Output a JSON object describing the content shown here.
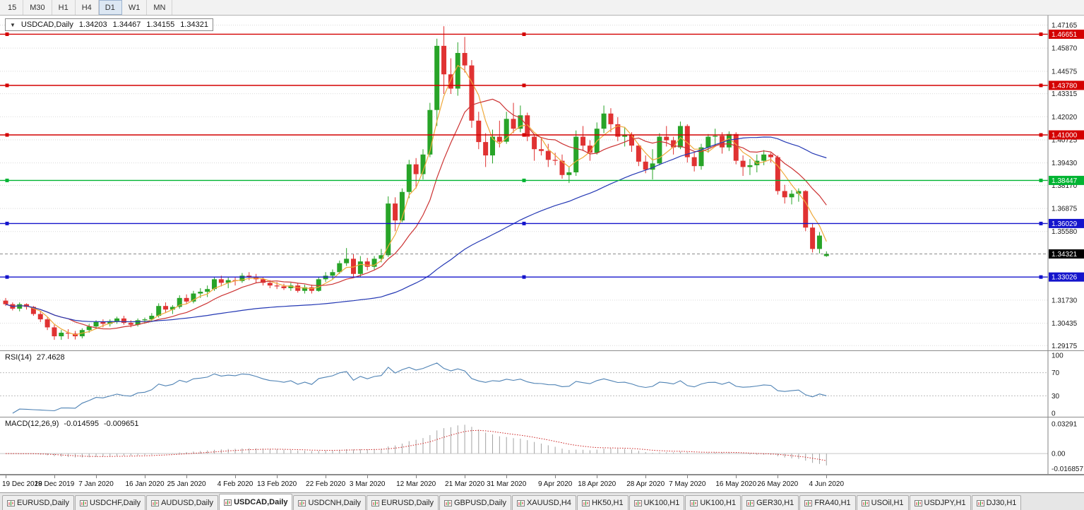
{
  "toolbar": {
    "timeframes": [
      {
        "label": "15",
        "active": false
      },
      {
        "label": "M30",
        "active": false
      },
      {
        "label": "H1",
        "active": false
      },
      {
        "label": "H4",
        "active": false
      },
      {
        "label": "D1",
        "active": true
      },
      {
        "label": "W1",
        "active": false
      },
      {
        "label": "MN",
        "active": false
      }
    ]
  },
  "title_box": {
    "dropdown_icon": "▼",
    "symbol": "USDCAD,Daily",
    "open": "1.34203",
    "high": "1.34467",
    "low": "1.34155",
    "close": "1.34321"
  },
  "price_axis": {
    "ticks": [
      "1.47165",
      "1.45870",
      "1.44575",
      "1.43315",
      "1.42020",
      "1.40725",
      "1.39430",
      "1.38170",
      "1.36875",
      "1.35580",
      "1.31730",
      "1.30435",
      "1.29175"
    ],
    "line_badges": [
      {
        "label": "1.46651",
        "color": "#D40000"
      },
      {
        "label": "1.43780",
        "color": "#D40000"
      },
      {
        "label": "1.41000",
        "color": "#D40000"
      },
      {
        "label": "1.38447",
        "color": "#00B432"
      },
      {
        "label": "1.36029",
        "color": "#1414CC"
      },
      {
        "label": "1.33026",
        "color": "#1414CC"
      }
    ],
    "current_badge": {
      "label": "1.34321",
      "color": "#000000"
    }
  },
  "indicators": {
    "rsi": {
      "name": "RSI(14)",
      "value": "27.4628",
      "axis": [
        "100",
        "70",
        "30",
        "0"
      ],
      "levels": [
        70,
        30
      ],
      "color": "#4E82B4"
    },
    "macd": {
      "name": "MACD(12,26,9)",
      "value_main": "-0.014595",
      "value_signal": "-0.009651",
      "axis": [
        "0.03291",
        "0.00",
        "-0.016857"
      ],
      "histogram_color": "#A3A3A3",
      "signal_color": "#CC2222"
    }
  },
  "x_axis_labels": [
    "19 Dec 2019",
    "28 Dec 2019",
    "7 Jan 2020",
    "16 Jan 2020",
    "25 Jan 2020",
    "4 Feb 2020",
    "13 Feb 2020",
    "22 Feb 2020",
    "3 Mar 2020",
    "12 Mar 2020",
    "21 Mar 2020",
    "31 Mar 2020",
    "9 Apr 2020",
    "18 Apr 2020",
    "28 Apr 2020",
    "7 May 2020",
    "16 May 2020",
    "26 May 2020",
    "4 Jun 2020"
  ],
  "tabs": [
    {
      "label": "EURUSD,Daily",
      "active": false
    },
    {
      "label": "USDCHF,Daily",
      "active": false
    },
    {
      "label": "AUDUSD,Daily",
      "active": false
    },
    {
      "label": "USDCAD,Daily",
      "active": true
    },
    {
      "label": "USDCNH,Daily",
      "active": false
    },
    {
      "label": "EURUSD,Daily",
      "active": false
    },
    {
      "label": "GBPUSD,Daily",
      "active": false
    },
    {
      "label": "XAUUSD,H4",
      "active": false
    },
    {
      "label": "HK50,H1",
      "active": false
    },
    {
      "label": "UK100,H1",
      "active": false
    },
    {
      "label": "UK100,H1",
      "active": false
    },
    {
      "label": "GER30,H1",
      "active": false
    },
    {
      "label": "FRA40,H1",
      "active": false
    },
    {
      "label": "USOil,H1",
      "active": false
    },
    {
      "label": "USDJPY,H1",
      "active": false
    },
    {
      "label": "DJ30,H1",
      "active": false
    }
  ],
  "chart_data": {
    "type": "candlestick",
    "symbol": "USDCAD",
    "timeframe": "Daily",
    "last_ohlc": {
      "open": 1.34203,
      "high": 1.34467,
      "low": 1.34155,
      "close": 1.34321
    },
    "price_range": [
      1.2887,
      1.477
    ],
    "candle_colors": {
      "bull": "#28A428",
      "bear": "#E03232"
    },
    "hlines": [
      {
        "price": 1.46651,
        "color": "#D40000"
      },
      {
        "price": 1.4378,
        "color": "#D40000"
      },
      {
        "price": 1.41,
        "color": "#D40000"
      },
      {
        "price": 1.38447,
        "color": "#00B432"
      },
      {
        "price": 1.36029,
        "color": "#1414CC"
      },
      {
        "price": 1.33026,
        "color": "#1414CC"
      }
    ],
    "moving_averages": [
      {
        "period": 4,
        "method": "sma",
        "color": "#EFA93A"
      },
      {
        "period": 10,
        "method": "sma",
        "color": "#CC3333"
      },
      {
        "period": 50,
        "method": "sma",
        "color": "#2438B4"
      }
    ],
    "rsi_period": 14,
    "macd_params": [
      12,
      26,
      9
    ],
    "x_labels": [
      "19 Dec 2019",
      "28 Dec 2019",
      "7 Jan 2020",
      "16 Jan 2020",
      "25 Jan 2020",
      "4 Feb 2020",
      "13 Feb 2020",
      "22 Feb 2020",
      "3 Mar 2020",
      "12 Mar 2020",
      "21 Mar 2020",
      "31 Mar 2020",
      "9 Apr 2020",
      "18 Apr 2020",
      "28 Apr 2020",
      "7 May 2020",
      "16 May 2020",
      "26 May 2020",
      "4 Jun 2020"
    ],
    "candles": [
      [
        1.317,
        1.3185,
        1.314,
        1.315
      ],
      [
        1.315,
        1.316,
        1.3115,
        1.3125
      ],
      [
        1.3125,
        1.316,
        1.311,
        1.315
      ],
      [
        1.315,
        1.3155,
        1.312,
        1.3135
      ],
      [
        1.3135,
        1.314,
        1.3085,
        1.3095
      ],
      [
        1.3095,
        1.311,
        1.305,
        1.3065
      ],
      [
        1.3065,
        1.3075,
        1.3005,
        1.302
      ],
      [
        1.302,
        1.3035,
        1.295,
        1.297
      ],
      [
        1.297,
        1.3005,
        1.295,
        1.299
      ],
      [
        1.299,
        1.301,
        1.2955,
        1.2985
      ],
      [
        1.2985,
        1.3,
        1.2952,
        1.297
      ],
      [
        1.297,
        1.3015,
        1.2958,
        1.3005
      ],
      [
        1.3005,
        1.304,
        1.299,
        1.3025
      ],
      [
        1.3025,
        1.306,
        1.301,
        1.305
      ],
      [
        1.305,
        1.3065,
        1.302,
        1.304
      ],
      [
        1.304,
        1.3065,
        1.3025,
        1.3055
      ],
      [
        1.3055,
        1.308,
        1.304,
        1.307
      ],
      [
        1.307,
        1.3085,
        1.3035,
        1.3045
      ],
      [
        1.3045,
        1.306,
        1.302,
        1.3035
      ],
      [
        1.3035,
        1.307,
        1.3025,
        1.306
      ],
      [
        1.306,
        1.3075,
        1.304,
        1.3065
      ],
      [
        1.3065,
        1.31,
        1.305,
        1.3085
      ],
      [
        1.3085,
        1.3155,
        1.3075,
        1.314
      ],
      [
        1.314,
        1.316,
        1.31,
        1.312
      ],
      [
        1.312,
        1.3145,
        1.3095,
        1.3135
      ],
      [
        1.3135,
        1.32,
        1.3125,
        1.3185
      ],
      [
        1.3185,
        1.3205,
        1.315,
        1.3165
      ],
      [
        1.3165,
        1.3225,
        1.3155,
        1.321
      ],
      [
        1.321,
        1.324,
        1.3185,
        1.322
      ],
      [
        1.322,
        1.3255,
        1.319,
        1.3235
      ],
      [
        1.3235,
        1.3305,
        1.3225,
        1.329
      ],
      [
        1.329,
        1.331,
        1.325,
        1.327
      ],
      [
        1.327,
        1.33,
        1.324,
        1.3285
      ],
      [
        1.3285,
        1.33,
        1.3255,
        1.328
      ],
      [
        1.328,
        1.3325,
        1.327,
        1.331
      ],
      [
        1.331,
        1.333,
        1.3285,
        1.3305
      ],
      [
        1.3305,
        1.332,
        1.327,
        1.329
      ],
      [
        1.329,
        1.3305,
        1.3255,
        1.327
      ],
      [
        1.327,
        1.3285,
        1.324,
        1.3255
      ],
      [
        1.3255,
        1.3275,
        1.3235,
        1.325
      ],
      [
        1.325,
        1.3265,
        1.323,
        1.324
      ],
      [
        1.324,
        1.327,
        1.3225,
        1.3255
      ],
      [
        1.3255,
        1.327,
        1.3215,
        1.3225
      ],
      [
        1.3225,
        1.326,
        1.321,
        1.3245
      ],
      [
        1.3245,
        1.326,
        1.321,
        1.3225
      ],
      [
        1.3225,
        1.3305,
        1.322,
        1.329
      ],
      [
        1.329,
        1.333,
        1.3275,
        1.331
      ],
      [
        1.331,
        1.3345,
        1.329,
        1.333
      ],
      [
        1.333,
        1.3395,
        1.332,
        1.338
      ],
      [
        1.338,
        1.3465,
        1.3365,
        1.3405
      ],
      [
        1.3405,
        1.343,
        1.3305,
        1.332
      ],
      [
        1.332,
        1.342,
        1.33,
        1.339
      ],
      [
        1.339,
        1.341,
        1.334,
        1.336
      ],
      [
        1.336,
        1.342,
        1.3345,
        1.3405
      ],
      [
        1.3405,
        1.346,
        1.3385,
        1.3425
      ],
      [
        1.3425,
        1.3755,
        1.3415,
        1.3715
      ],
      [
        1.3715,
        1.375,
        1.356,
        1.362
      ],
      [
        1.362,
        1.38,
        1.361,
        1.378
      ],
      [
        1.378,
        1.396,
        1.3745,
        1.3935
      ],
      [
        1.3935,
        1.397,
        1.38,
        1.388
      ],
      [
        1.388,
        1.402,
        1.385,
        1.399
      ],
      [
        1.399,
        1.428,
        1.3975,
        1.424
      ],
      [
        1.424,
        1.464,
        1.415,
        1.46
      ],
      [
        1.46,
        1.471,
        1.433,
        1.444
      ],
      [
        1.444,
        1.453,
        1.433,
        1.436
      ],
      [
        1.436,
        1.462,
        1.432,
        1.456
      ],
      [
        1.456,
        1.465,
        1.445,
        1.449
      ],
      [
        1.449,
        1.452,
        1.414,
        1.418
      ],
      [
        1.418,
        1.423,
        1.402,
        1.406
      ],
      [
        1.406,
        1.411,
        1.392,
        1.3985
      ],
      [
        1.3985,
        1.413,
        1.394,
        1.409
      ],
      [
        1.409,
        1.418,
        1.403,
        1.4062
      ],
      [
        1.4062,
        1.423,
        1.405,
        1.419
      ],
      [
        1.419,
        1.428,
        1.411,
        1.4135
      ],
      [
        1.4135,
        1.4265,
        1.4115,
        1.421
      ],
      [
        1.421,
        1.4225,
        1.4065,
        1.409
      ],
      [
        1.409,
        1.4105,
        1.3955,
        1.402
      ],
      [
        1.402,
        1.408,
        1.3985,
        1.401
      ],
      [
        1.401,
        1.405,
        1.392,
        1.396
      ],
      [
        1.396,
        1.4,
        1.393,
        1.3955
      ],
      [
        1.3955,
        1.399,
        1.3855,
        1.3875
      ],
      [
        1.3875,
        1.392,
        1.383,
        1.389
      ],
      [
        1.389,
        1.4125,
        1.387,
        1.409
      ],
      [
        1.409,
        1.415,
        1.401,
        1.404
      ],
      [
        1.404,
        1.407,
        1.3955,
        1.4
      ],
      [
        1.4,
        1.417,
        1.399,
        1.4135
      ],
      [
        1.4135,
        1.4265,
        1.411,
        1.422
      ],
      [
        1.422,
        1.425,
        1.4115,
        1.416
      ],
      [
        1.416,
        1.42,
        1.4065,
        1.409
      ],
      [
        1.409,
        1.4145,
        1.4035,
        1.41
      ],
      [
        1.41,
        1.4115,
        1.4005,
        1.404
      ],
      [
        1.404,
        1.405,
        1.3925,
        1.395
      ],
      [
        1.395,
        1.3985,
        1.3885,
        1.3905
      ],
      [
        1.3905,
        1.402,
        1.385,
        1.394
      ],
      [
        1.394,
        1.411,
        1.393,
        1.409
      ],
      [
        1.409,
        1.415,
        1.4035,
        1.407
      ],
      [
        1.407,
        1.409,
        1.399,
        1.403
      ],
      [
        1.403,
        1.4175,
        1.402,
        1.415
      ],
      [
        1.415,
        1.416,
        1.3945,
        1.3975
      ],
      [
        1.3975,
        1.4,
        1.3895,
        1.3925
      ],
      [
        1.3925,
        1.405,
        1.3905,
        1.403
      ],
      [
        1.403,
        1.4105,
        1.4,
        1.409
      ],
      [
        1.409,
        1.4135,
        1.404,
        1.4095
      ],
      [
        1.4095,
        1.4115,
        1.3995,
        1.403
      ],
      [
        1.403,
        1.412,
        1.401,
        1.4105
      ],
      [
        1.4105,
        1.4115,
        1.3935,
        1.3955
      ],
      [
        1.3955,
        1.3985,
        1.387,
        1.392
      ],
      [
        1.392,
        1.3965,
        1.3875,
        1.393
      ],
      [
        1.393,
        1.399,
        1.389,
        1.3955
      ],
      [
        1.3955,
        1.4015,
        1.393,
        1.399
      ],
      [
        1.399,
        1.4,
        1.3945,
        1.3975
      ],
      [
        1.3975,
        1.3985,
        1.3765,
        1.3785
      ],
      [
        1.3785,
        1.382,
        1.3715,
        1.375
      ],
      [
        1.375,
        1.379,
        1.371,
        1.377
      ],
      [
        1.377,
        1.38,
        1.3725,
        1.3785
      ],
      [
        1.3785,
        1.379,
        1.356,
        1.358
      ],
      [
        1.358,
        1.3605,
        1.344,
        1.346
      ],
      [
        1.346,
        1.3555,
        1.3435,
        1.3535
      ],
      [
        1.34203,
        1.34467,
        1.34155,
        1.34321
      ]
    ]
  }
}
